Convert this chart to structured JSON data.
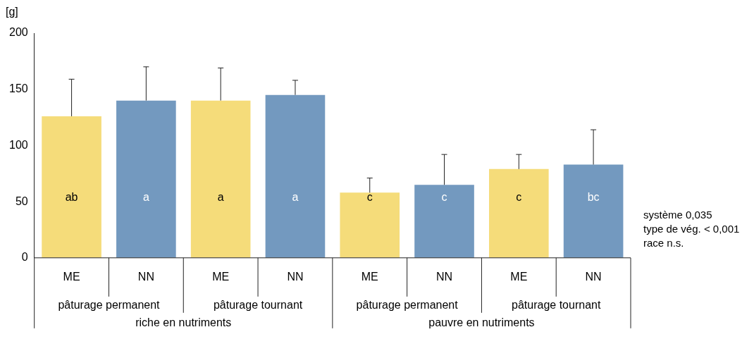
{
  "chart_data": {
    "type": "bar",
    "ylabel": "[g]",
    "categories": [
      "ME",
      "NN",
      "ME",
      "NN",
      "ME",
      "NN",
      "ME",
      "NN"
    ],
    "values": [
      126,
      140,
      140,
      145,
      58,
      65,
      79,
      83
    ],
    "colors": [
      "#f5dc7a",
      "#7399bf",
      "#f5dc7a",
      "#7399bf",
      "#f5dc7a",
      "#7399bf",
      "#f5dc7a",
      "#7399bf"
    ],
    "errors": [
      [
        126,
        159
      ],
      [
        140,
        170
      ],
      [
        140,
        169
      ],
      [
        145,
        158
      ],
      [
        58,
        71
      ],
      [
        65,
        92
      ],
      [
        79,
        92
      ],
      [
        83,
        114
      ]
    ],
    "value_labels": [
      "ab",
      "a",
      "a",
      "a",
      "c",
      "c",
      "c",
      "bc"
    ],
    "ylim": [
      0,
      200
    ],
    "yticks": [
      0,
      50,
      100,
      150,
      200
    ],
    "grid": false,
    "legend": false,
    "annotations": [
      "pâturage permanent",
      "pâturage tournant",
      "pâturage permanent",
      "pâturage tournant",
      "riche en nutriments",
      "pauvre en nutriments",
      "système 0,035",
      "type de vég. < 0,001",
      "race n.s."
    ]
  }
}
